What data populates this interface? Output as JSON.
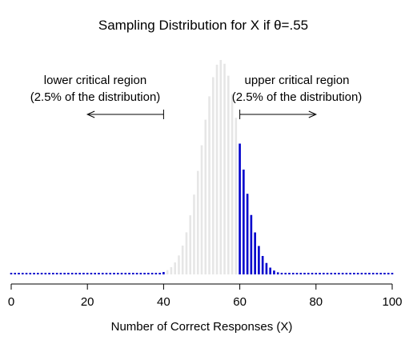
{
  "chart_data": {
    "type": "bar",
    "title": "Sampling Distribution for X if θ=.55",
    "xlabel": "Number of Correct Responses (X)",
    "ylabel": "",
    "xlim": [
      0,
      100
    ],
    "x_ticks": [
      "0",
      "20",
      "40",
      "60",
      "80",
      "100"
    ],
    "distribution": {
      "kind": "binomial",
      "n": 100,
      "p": 0.55
    },
    "critical_regions": {
      "lower_max": 40,
      "upper_min": 60
    },
    "annotations": {
      "lower": {
        "line1": "lower critical region",
        "line2": "(2.5% of the distribution)",
        "arrow_direction": "left",
        "arrow_x_start": 40,
        "arrow_x_end": 20
      },
      "upper": {
        "line1": "upper critical region",
        "line2": "(2.5% of the distribution)",
        "arrow_direction": "right",
        "arrow_x_start": 60,
        "arrow_x_end": 80
      }
    },
    "colors": {
      "critical": "#0000cc",
      "middle": "#e6e6e6",
      "text": "#000000"
    },
    "grid": false,
    "legend": "none"
  }
}
